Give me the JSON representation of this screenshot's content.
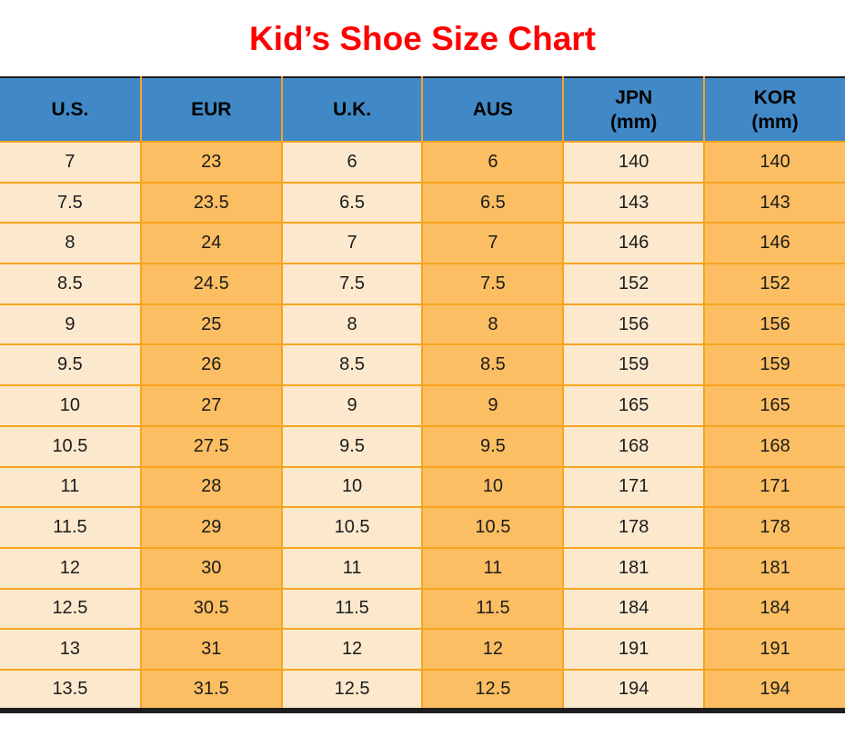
{
  "title": "Kid’s Shoe Size Chart",
  "colors": {
    "title_red": "#fe0000",
    "header_bg": "#4189c6",
    "row_light": "#fce9cd",
    "row_dark": "#fcbe62",
    "grid": "#f7a41f",
    "border_dark": "#1e1e20"
  },
  "table": {
    "headers": [
      {
        "id": "us",
        "lines": [
          "U.S."
        ]
      },
      {
        "id": "eur",
        "lines": [
          "EUR"
        ]
      },
      {
        "id": "uk",
        "lines": [
          "U.K."
        ]
      },
      {
        "id": "aus",
        "lines": [
          "AUS"
        ]
      },
      {
        "id": "jpn",
        "lines": [
          "JPN",
          "(mm)"
        ]
      },
      {
        "id": "kor",
        "lines": [
          "KOR",
          "(mm)"
        ]
      }
    ]
  },
  "chart_data": {
    "type": "table",
    "title": "Kid’s Shoe Size Chart",
    "columns": [
      "U.S.",
      "EUR",
      "U.K.",
      "AUS",
      "JPN (mm)",
      "KOR (mm)"
    ],
    "rows": [
      [
        7,
        23,
        6,
        6,
        140,
        140
      ],
      [
        7.5,
        23.5,
        6.5,
        6.5,
        143,
        143
      ],
      [
        8,
        24,
        7,
        7,
        146,
        146
      ],
      [
        8.5,
        24.5,
        7.5,
        7.5,
        152,
        152
      ],
      [
        9,
        25,
        8,
        8,
        156,
        156
      ],
      [
        9.5,
        26,
        8.5,
        8.5,
        159,
        159
      ],
      [
        10,
        27,
        9,
        9,
        165,
        165
      ],
      [
        10.5,
        27.5,
        9.5,
        9.5,
        168,
        168
      ],
      [
        11,
        28,
        10,
        10,
        171,
        171
      ],
      [
        11.5,
        29,
        10.5,
        10.5,
        178,
        178
      ],
      [
        12,
        30,
        11,
        11,
        181,
        181
      ],
      [
        12.5,
        30.5,
        11.5,
        11.5,
        184,
        184
      ],
      [
        13,
        31,
        12,
        12,
        191,
        191
      ],
      [
        13.5,
        31.5,
        12.5,
        12.5,
        194,
        194
      ]
    ]
  }
}
